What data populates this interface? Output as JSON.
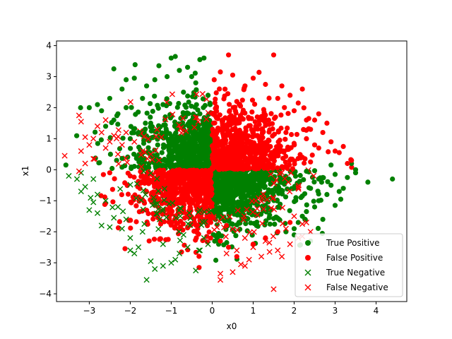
{
  "chart_data": {
    "type": "scatter",
    "title": "",
    "xlabel": "x0",
    "ylabel": "x1",
    "xlim": [
      -3.8,
      4.75
    ],
    "ylim": [
      -4.25,
      4.15
    ],
    "xticks": [
      -3,
      -2,
      -1,
      0,
      1,
      2,
      3,
      4
    ],
    "yticks": [
      -4,
      -3,
      -2,
      -1,
      0,
      1,
      2,
      3,
      4
    ],
    "grid": false,
    "legend_position": "lower-right",
    "series": [
      {
        "name": "True Positive",
        "marker": "circle",
        "color": "#008000",
        "region": {
          "quadrants": [
            [
              -1,
              1
            ],
            [
              1,
              -1
            ]
          ],
          "angle_fill": 0.92
        },
        "points": [
          [
            4.4,
            -0.3
          ],
          [
            3.8,
            -0.4
          ],
          [
            3.5,
            0.0
          ],
          [
            3.5,
            -0.1
          ],
          [
            3.4,
            0.2
          ],
          [
            3.2,
            -0.6
          ],
          [
            3.1,
            -0.7
          ],
          [
            3.0,
            -1.15
          ],
          [
            2.9,
            -0.5
          ],
          [
            2.8,
            -0.8
          ],
          [
            2.6,
            -1.0
          ],
          [
            2.5,
            -1.2
          ],
          [
            2.3,
            -1.35
          ],
          [
            2.2,
            -1.5
          ],
          [
            2.1,
            -1.7
          ],
          [
            2.0,
            -1.9
          ],
          [
            2.6,
            -0.3
          ],
          [
            2.4,
            -0.6
          ],
          [
            2.3,
            -0.05
          ],
          [
            3.3,
            -0.25
          ],
          [
            3.0,
            -0.15
          ],
          [
            2.7,
            -0.25
          ],
          [
            2.2,
            -0.85
          ],
          [
            2.9,
            0.15
          ],
          [
            1.8,
            -2.0
          ],
          [
            2.0,
            -2.1
          ],
          [
            2.4,
            -2.3
          ],
          [
            2.7,
            -1.6
          ],
          [
            -2.4,
            3.25
          ],
          [
            -2.1,
            2.9
          ],
          [
            -1.9,
            2.95
          ],
          [
            -0.9,
            3.65
          ],
          [
            -1.0,
            3.6
          ],
          [
            -0.3,
            3.55
          ],
          [
            -0.2,
            3.6
          ],
          [
            -0.8,
            3.2
          ],
          [
            -0.6,
            3.3
          ],
          [
            -1.3,
            3.35
          ],
          [
            -2.2,
            2.6
          ],
          [
            -2.5,
            2.3
          ],
          [
            -2.7,
            1.9
          ],
          [
            -2.8,
            2.1
          ],
          [
            -3.0,
            2.0
          ],
          [
            -2.4,
            1.6
          ],
          [
            -2.6,
            1.4
          ],
          [
            -1.6,
            2.7
          ],
          [
            -1.4,
            2.9
          ],
          [
            -1.7,
            2.3
          ],
          [
            -2.1,
            2.0
          ],
          [
            -0.5,
            3.0
          ],
          [
            -0.4,
            2.8
          ],
          [
            -1.1,
            3.0
          ],
          [
            -2.3,
            1.8
          ],
          [
            -0.05,
            2.1
          ],
          [
            -0.1,
            2.4
          ],
          [
            -1.8,
            1.2
          ],
          [
            -2.0,
            1.0
          ],
          [
            -1.5,
            1.5
          ],
          [
            -1.2,
            2.1
          ],
          [
            -0.7,
            2.5
          ],
          [
            -0.3,
            1.8
          ]
        ]
      },
      {
        "name": "False Positive",
        "marker": "circle",
        "color": "#ff0000",
        "region": {
          "quadrants": [
            [
              1,
              1
            ],
            [
              -1,
              -1
            ]
          ],
          "angle_fill": 0.92
        },
        "points": [
          [
            0.4,
            3.7
          ],
          [
            1.5,
            3.7
          ],
          [
            0.2,
            3.15
          ],
          [
            0.5,
            3.05
          ],
          [
            1.0,
            2.95
          ],
          [
            1.3,
            2.75
          ],
          [
            1.7,
            2.7
          ],
          [
            2.2,
            2.6
          ],
          [
            1.9,
            2.4
          ],
          [
            2.1,
            2.15
          ],
          [
            2.6,
            1.8
          ],
          [
            2.5,
            1.6
          ],
          [
            2.8,
            1.5
          ],
          [
            2.4,
            1.3
          ],
          [
            2.7,
            1.2
          ],
          [
            2.3,
            1.0
          ],
          [
            2.9,
            0.9
          ],
          [
            3.2,
            0.75
          ],
          [
            3.1,
            0.55
          ],
          [
            3.3,
            0.2
          ],
          [
            3.4,
            0.3
          ],
          [
            3.0,
            0.6
          ],
          [
            2.5,
            0.8
          ],
          [
            2.2,
            0.4
          ],
          [
            2.4,
            0.25
          ],
          [
            0.05,
            2.9
          ],
          [
            0.8,
            2.7
          ],
          [
            1.6,
            2.3
          ],
          [
            2.0,
            1.9
          ],
          [
            2.3,
            1.6
          ],
          [
            1.8,
            1.2
          ],
          [
            0.6,
            2.2
          ],
          [
            1.1,
            1.7
          ],
          [
            2.6,
            0.7
          ],
          [
            -2.0,
            -0.2
          ],
          [
            -2.5,
            -0.1
          ],
          [
            -1.5,
            -0.35
          ],
          [
            -1.0,
            -0.3
          ],
          [
            -0.5,
            -0.15
          ],
          [
            0.4,
            -2.5
          ],
          [
            0.6,
            -2.8
          ],
          [
            0.2,
            -2.3
          ],
          [
            1.0,
            -2.4
          ],
          [
            1.3,
            -2.2
          ],
          [
            1.6,
            -2.0
          ],
          [
            1.9,
            -1.7
          ],
          [
            0.35,
            -1.8
          ]
        ]
      },
      {
        "name": "True Negative",
        "marker": "x",
        "color": "#008000",
        "region": {
          "quadrants": [
            [
              -1,
              -1
            ]
          ],
          "angle_fill": 0.92
        },
        "points": [
          [
            -3.5,
            -0.2
          ],
          [
            -3.3,
            -0.3
          ],
          [
            -3.2,
            -0.7
          ],
          [
            -3.0,
            -1.3
          ],
          [
            -2.8,
            -1.4
          ],
          [
            -2.7,
            -1.8
          ],
          [
            -2.5,
            -1.85
          ],
          [
            -2.2,
            -1.9
          ],
          [
            -2.4,
            -1.55
          ],
          [
            -2.0,
            -2.2
          ],
          [
            -1.8,
            -2.5
          ],
          [
            -1.9,
            -2.7
          ],
          [
            -1.5,
            -2.95
          ],
          [
            -1.6,
            -3.55
          ],
          [
            -1.4,
            -3.2
          ],
          [
            -1.2,
            -3.1
          ],
          [
            -0.9,
            -2.9
          ],
          [
            -0.8,
            -2.7
          ],
          [
            -0.6,
            -2.5
          ],
          [
            -0.4,
            -3.25
          ],
          [
            -0.3,
            -2.6
          ],
          [
            -0.1,
            -2.4
          ],
          [
            -3.1,
            -0.55
          ],
          [
            -2.9,
            -0.3
          ],
          [
            -3.2,
            -0.1
          ],
          [
            -2.6,
            -1.0
          ],
          [
            -2.9,
            -1.05
          ],
          [
            -2.1,
            -1.6
          ],
          [
            -1.7,
            -2.0
          ],
          [
            -1.2,
            -2.4
          ],
          [
            -0.7,
            -2.1
          ],
          [
            -2.3,
            -1.2
          ],
          [
            -2.0,
            -2.6
          ],
          [
            -1.0,
            -3.0
          ],
          [
            -0.2,
            -2.2
          ],
          [
            -2.8,
            -0.8
          ]
        ]
      },
      {
        "name": "False Negative",
        "marker": "x",
        "color": "#ff0000",
        "region": {
          "quadrants": [
            [
              -1,
              1
            ],
            [
              1,
              -1
            ]
          ],
          "angle_fill": 0.22
        },
        "points": [
          [
            -3.6,
            0.45
          ],
          [
            -3.25,
            1.75
          ],
          [
            -3.2,
            1.55
          ],
          [
            -3.1,
            1.05
          ],
          [
            -3.0,
            0.8
          ],
          [
            -3.2,
            0.6
          ],
          [
            -3.1,
            0.2
          ],
          [
            -2.9,
            1.0
          ],
          [
            -2.8,
            1.4
          ],
          [
            -2.7,
            1.2
          ],
          [
            -2.6,
            0.7
          ],
          [
            -2.5,
            0.9
          ],
          [
            -2.4,
            1.1
          ],
          [
            -2.3,
            0.5
          ],
          [
            -2.2,
            0.8
          ],
          [
            -2.1,
            1.2
          ],
          [
            -1.9,
            0.9
          ],
          [
            -1.7,
            0.6
          ],
          [
            -1.5,
            0.5
          ],
          [
            -1.3,
            0.3
          ],
          [
            -2.6,
            1.6
          ],
          [
            -2.9,
            0.35
          ],
          [
            -3.25,
            -0.05
          ],
          [
            0.2,
            -3.55
          ],
          [
            0.2,
            -3.35
          ],
          [
            0.5,
            -3.3
          ],
          [
            0.7,
            -3.05
          ],
          [
            0.9,
            -2.9
          ],
          [
            1.2,
            -2.8
          ],
          [
            1.5,
            -3.85
          ],
          [
            1.6,
            -2.6
          ],
          [
            1.9,
            -2.4
          ],
          [
            2.1,
            -2.2
          ],
          [
            2.4,
            -2.0
          ],
          [
            1.7,
            -2.8
          ],
          [
            1.4,
            -2.65
          ],
          [
            1.0,
            -2.5
          ],
          [
            0.6,
            -2.6
          ],
          [
            0.35,
            -2.7
          ],
          [
            2.2,
            -1.75
          ],
          [
            1.8,
            -1.9
          ],
          [
            2.0,
            -1.5
          ],
          [
            2.3,
            -1.7
          ],
          [
            0.8,
            -3.1
          ],
          [
            1.3,
            -2.3
          ]
        ]
      }
    ]
  }
}
